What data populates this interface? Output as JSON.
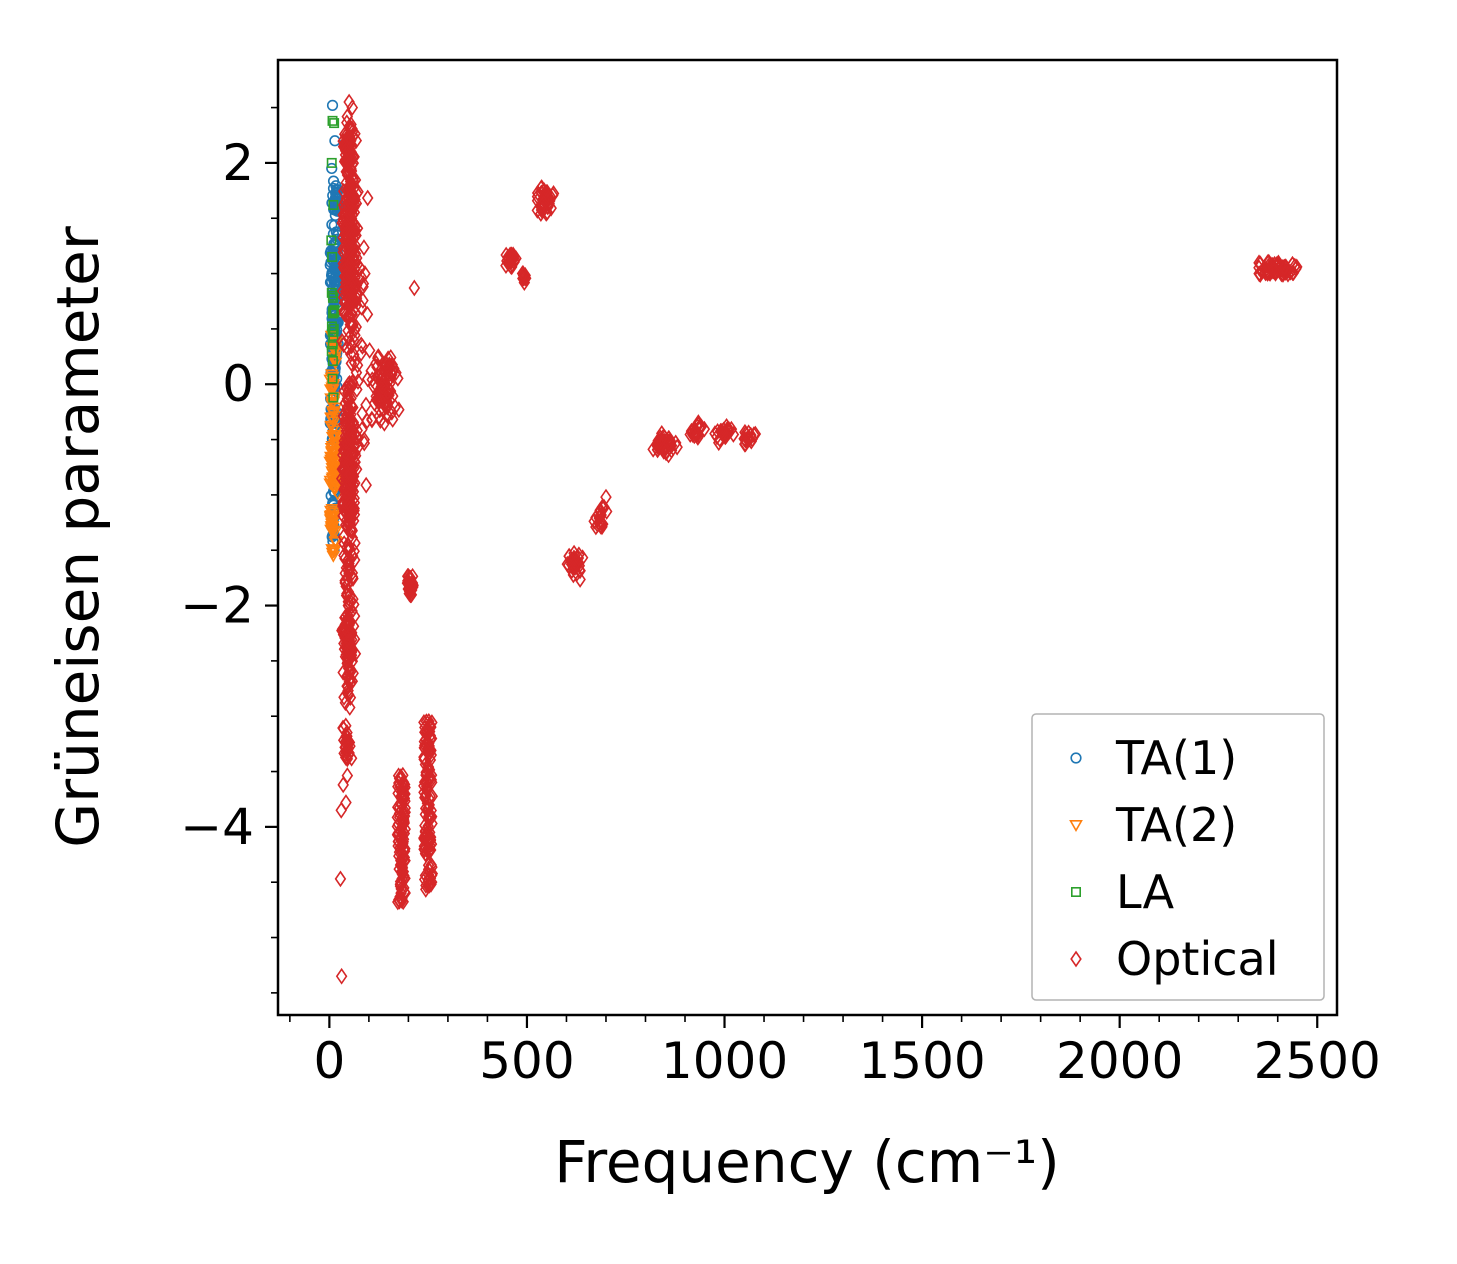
{
  "figure": {
    "background": "#ffffff"
  },
  "chart_data": {
    "type": "scatter",
    "title": "",
    "xlabel": "Frequency (cm⁻¹)",
    "ylabel": "Grüneisen parameter",
    "xlim": [
      -130,
      2550
    ],
    "ylim": [
      -5.7,
      2.93
    ],
    "xticks": [
      0,
      500,
      1000,
      1500,
      2000,
      2500
    ],
    "yticks": [
      -4,
      -2,
      0,
      2
    ],
    "x_minor_step": 100,
    "y_minor_step": 0.5,
    "grid": false,
    "legend_position": "lower right",
    "series": [
      {
        "name": "TA(1)",
        "marker": "circle",
        "color": "#1f77b4",
        "clusters": [
          {
            "x": 15,
            "y": 1.0,
            "sx": 14,
            "sy": 0.5,
            "n": 90
          },
          {
            "x": 12,
            "y": 0.35,
            "sx": 12,
            "sy": 0.45,
            "n": 70
          },
          {
            "x": 16,
            "y": 1.65,
            "sx": 12,
            "sy": 0.25,
            "n": 30
          },
          {
            "x": 10,
            "y": -0.3,
            "sx": 10,
            "sy": 0.35,
            "n": 30
          },
          {
            "x": 10,
            "y": -1.15,
            "sx": 8,
            "sy": 0.3,
            "n": 18
          }
        ],
        "points": [
          [
            8,
            2.52
          ],
          [
            14,
            2.2
          ],
          [
            6,
            1.95
          ],
          [
            12,
            -1.5
          ],
          [
            9,
            -1.42
          ]
        ]
      },
      {
        "name": "TA(2)",
        "marker": "triangle-down",
        "color": "#ff7f0e",
        "clusters": [
          {
            "x": 12,
            "y": -0.7,
            "sx": 11,
            "sy": 0.35,
            "n": 70
          },
          {
            "x": 10,
            "y": -1.3,
            "sx": 9,
            "sy": 0.25,
            "n": 30
          },
          {
            "x": 9,
            "y": -0.15,
            "sx": 9,
            "sy": 0.25,
            "n": 25
          },
          {
            "x": 14,
            "y": 0.3,
            "sx": 10,
            "sy": 0.2,
            "n": 12
          }
        ],
        "points": [
          [
            10,
            -1.55
          ],
          [
            13,
            -1.5
          ]
        ]
      },
      {
        "name": "LA",
        "marker": "square",
        "color": "#2ca02c",
        "clusters": [
          {
            "x": 9,
            "y": 0.5,
            "sx": 6,
            "sy": 0.4,
            "n": 10
          }
        ],
        "points": [
          [
            8,
            2.38
          ],
          [
            12,
            2.36
          ],
          [
            6,
            2.0
          ],
          [
            10,
            1.62
          ],
          [
            7,
            1.15
          ],
          [
            9,
            0.8
          ],
          [
            11,
            0.5
          ],
          [
            6,
            0.3
          ],
          [
            8,
            0.05
          ],
          [
            10,
            -0.12
          ],
          [
            13,
            0.65
          ],
          [
            5,
            1.3
          ]
        ]
      },
      {
        "name": "Optical",
        "marker": "diamond",
        "color": "#d62728",
        "clusters": [
          {
            "x": 52,
            "y": 1.3,
            "sx": 22,
            "sy": 1.1,
            "n": 260
          },
          {
            "x": 50,
            "y": -0.9,
            "sx": 20,
            "sy": 1.0,
            "n": 240
          },
          {
            "x": 48,
            "y": -2.3,
            "sx": 18,
            "sy": 0.7,
            "n": 120
          },
          {
            "x": 47,
            "y": 2.15,
            "sx": 14,
            "sy": 0.3,
            "n": 50
          },
          {
            "x": 45,
            "y": -3.3,
            "sx": 12,
            "sy": 0.25,
            "n": 30
          },
          {
            "x": 70,
            "y": 0.2,
            "sx": 35,
            "sy": 1.6,
            "n": 60
          },
          {
            "x": 140,
            "y": -0.06,
            "sx": 38,
            "sy": 0.37,
            "n": 90
          },
          {
            "x": 205,
            "y": -1.82,
            "sx": 10,
            "sy": 0.12,
            "n": 30
          },
          {
            "x": 182,
            "y": -4.1,
            "sx": 10,
            "sy": 0.58,
            "n": 110,
            "dist": "uniform"
          },
          {
            "x": 250,
            "y": -3.8,
            "sx": 11,
            "sy": 0.78,
            "n": 130,
            "dist": "uniform"
          },
          {
            "x": 462,
            "y": 1.13,
            "sx": 20,
            "sy": 0.1,
            "n": 26
          },
          {
            "x": 492,
            "y": 0.97,
            "sx": 8,
            "sy": 0.06,
            "n": 10
          },
          {
            "x": 546,
            "y": 1.67,
            "sx": 25,
            "sy": 0.16,
            "n": 40
          },
          {
            "x": 622,
            "y": -1.63,
            "sx": 25,
            "sy": 0.15,
            "n": 32
          },
          {
            "x": 685,
            "y": -1.21,
            "sx": 18,
            "sy": 0.12,
            "n": 22
          },
          {
            "x": 850,
            "y": -0.54,
            "sx": 35,
            "sy": 0.11,
            "n": 40
          },
          {
            "x": 931,
            "y": -0.41,
            "sx": 20,
            "sy": 0.09,
            "n": 24
          },
          {
            "x": 998,
            "y": -0.46,
            "sx": 25,
            "sy": 0.08,
            "n": 26
          },
          {
            "x": 1060,
            "y": -0.5,
            "sx": 16,
            "sy": 0.07,
            "n": 16
          },
          {
            "x": 2399,
            "y": 1.05,
            "sx": 50,
            "sy": 0.06,
            "n": 55,
            "dist": "uniform"
          }
        ],
        "points": [
          [
            215,
            0.87
          ],
          [
            700,
            -1.02
          ],
          [
            1078,
            -0.45
          ],
          [
            35,
            -3.62
          ],
          [
            42,
            -3.78
          ],
          [
            30,
            -3.85
          ],
          [
            28,
            -4.47
          ],
          [
            31,
            -5.35
          ],
          [
            50,
            2.55
          ],
          [
            58,
            2.5
          ],
          [
            90,
            1.0
          ],
          [
            88,
            -0.5
          ]
        ]
      }
    ]
  }
}
